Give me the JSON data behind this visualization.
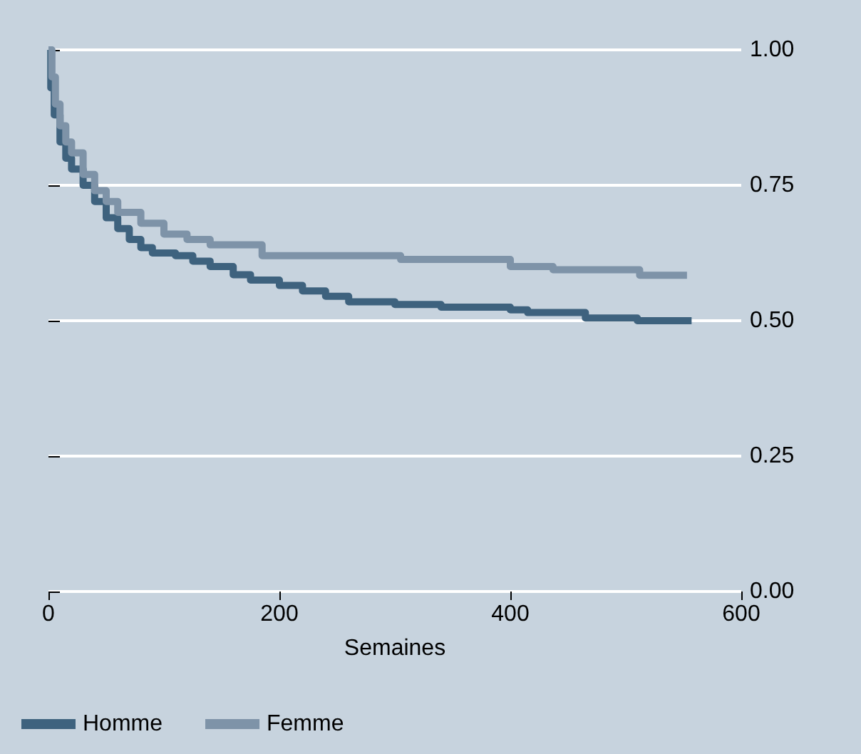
{
  "chart_data": {
    "type": "step",
    "xlabel": "Semaines",
    "legend": "bottom",
    "grid": "y",
    "line_style": "solid",
    "marker": "none",
    "xlim": [
      0,
      600
    ],
    "xticks": [
      0,
      200,
      400,
      600
    ],
    "ylim": [
      0,
      1
    ],
    "yticks": [
      {
        "value": 0,
        "label": "0.00"
      },
      {
        "value": 0.25,
        "label": "0.25"
      },
      {
        "value": 0.5,
        "label": "0.50"
      },
      {
        "value": 0.75,
        "label": "0.75"
      },
      {
        "value": 1,
        "label": "1.00"
      }
    ],
    "series": [
      {
        "name": "Homme",
        "color": "#3e627e",
        "x": [
          0,
          2,
          5,
          10,
          15,
          20,
          30,
          40,
          50,
          60,
          70,
          80,
          90,
          110,
          125,
          140,
          160,
          175,
          200,
          220,
          240,
          260,
          300,
          340,
          400,
          415,
          465,
          510,
          557
        ],
        "values": [
          1,
          0.93,
          0.88,
          0.83,
          0.8,
          0.78,
          0.75,
          0.72,
          0.69,
          0.67,
          0.65,
          0.635,
          0.625,
          0.62,
          0.61,
          0.6,
          0.585,
          0.575,
          0.565,
          0.555,
          0.545,
          0.535,
          0.53,
          0.525,
          0.52,
          0.515,
          0.505,
          0.5,
          0.5
        ]
      },
      {
        "name": "Femme",
        "color": "#7e93a8",
        "x": [
          0,
          3,
          6,
          10,
          15,
          20,
          30,
          40,
          50,
          60,
          80,
          100,
          120,
          140,
          185,
          305,
          400,
          437,
          512,
          553
        ],
        "values": [
          1,
          0.95,
          0.9,
          0.86,
          0.83,
          0.81,
          0.77,
          0.74,
          0.72,
          0.7,
          0.68,
          0.66,
          0.65,
          0.64,
          0.62,
          0.613,
          0.6,
          0.594,
          0.584,
          0.584
        ]
      }
    ]
  }
}
